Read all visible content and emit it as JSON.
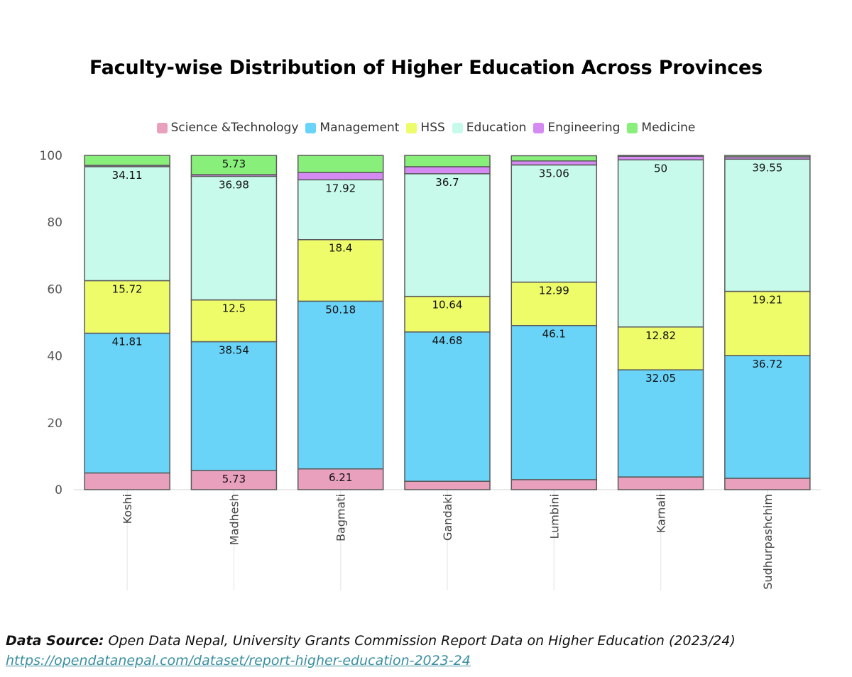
{
  "chart_data": {
    "type": "bar",
    "stacked": true,
    "title": "Faculty-wise Distribution of Higher Education Across Provinces",
    "categories": [
      "Koshi",
      "Madhesh",
      "Bagmati",
      "Gandaki",
      "Lumbini",
      "Karnali",
      "Sudhurpashchim"
    ],
    "ylim": [
      0,
      100
    ],
    "yticks": [
      0,
      20,
      40,
      60,
      80,
      100
    ],
    "grid": "vertical",
    "legend_position": "top",
    "series": [
      {
        "name": "Science &Technology",
        "color": "#e8a0bc",
        "values": [
          5.0,
          5.73,
          6.21,
          2.5,
          3.0,
          3.8,
          3.4
        ],
        "labels": [
          "",
          "5.73",
          "6.21",
          "",
          "",
          "",
          ""
        ]
      },
      {
        "name": "Management",
        "color": "#6ad3f8",
        "values": [
          41.81,
          38.54,
          50.18,
          44.68,
          46.1,
          32.05,
          36.72
        ],
        "labels": [
          "41.81",
          "38.54",
          "50.18",
          "44.68",
          "46.1",
          "32.05",
          "36.72"
        ]
      },
      {
        "name": "HSS",
        "color": "#eefc6a",
        "values": [
          15.72,
          12.5,
          18.4,
          10.64,
          12.99,
          12.82,
          19.21
        ],
        "labels": [
          "15.72",
          "12.5",
          "18.4",
          "10.64",
          "12.99",
          "12.82",
          "19.21"
        ]
      },
      {
        "name": "Education",
        "color": "#c8faec",
        "values": [
          34.11,
          36.98,
          17.92,
          36.7,
          35.06,
          50,
          39.55
        ],
        "labels": [
          "34.11",
          "36.98",
          "17.92",
          "36.7",
          "35.06",
          "50",
          "39.55"
        ]
      },
      {
        "name": "Engineering",
        "color": "#d48af2",
        "values": [
          0.4,
          0.5,
          2.2,
          2.1,
          1.2,
          1.1,
          0.7
        ],
        "labels": [
          "",
          "",
          "",
          "",
          "",
          "",
          ""
        ]
      },
      {
        "name": "Medicine",
        "color": "#88f07a",
        "values": [
          2.96,
          5.73,
          5.09,
          3.38,
          1.55,
          0.23,
          0.42
        ],
        "labels": [
          "",
          "5.73",
          "",
          "",
          "",
          "",
          ""
        ]
      }
    ]
  },
  "source": {
    "label": "Data Source:",
    "text": " Open Data Nepal, University Grants Commission Report Data on Higher Education (2023/24)",
    "url": "https://opendatanepal.com/dataset/report-higher-education-2023-24"
  }
}
